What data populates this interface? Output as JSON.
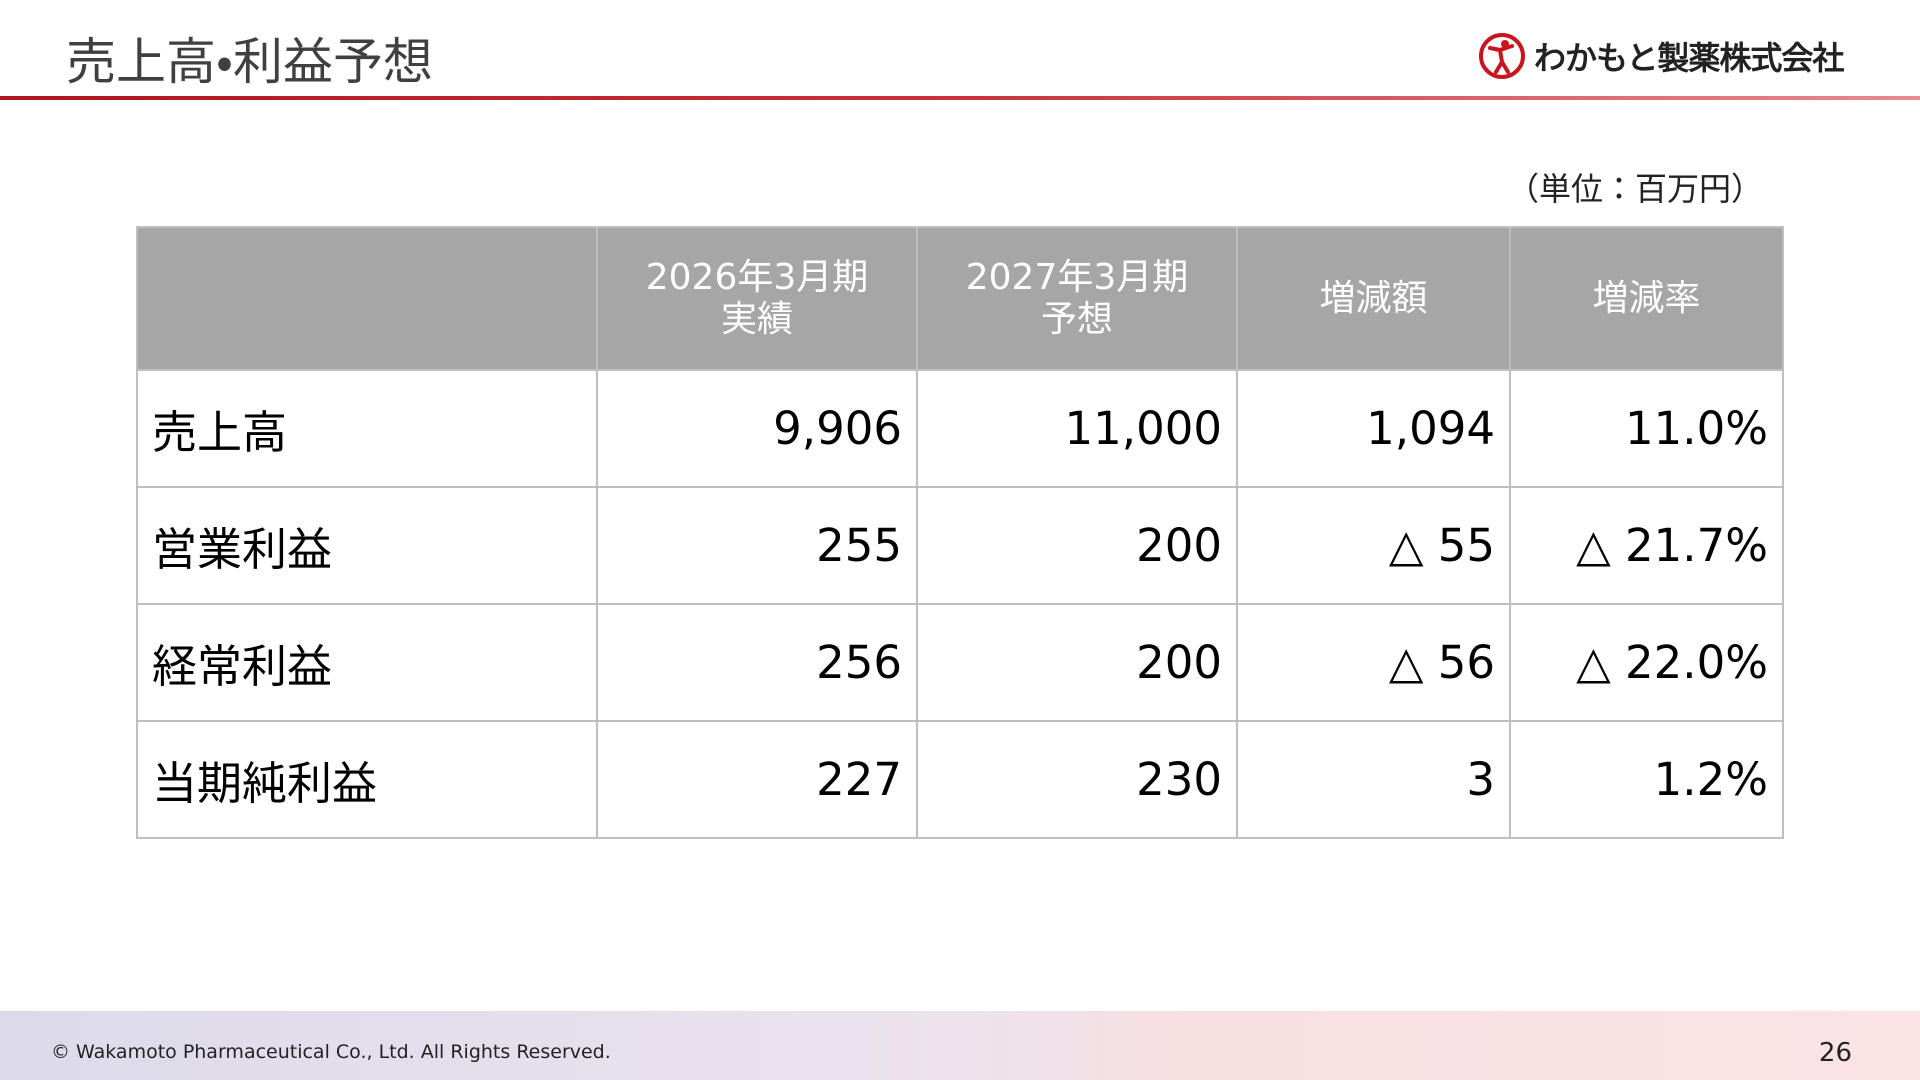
{
  "header": {
    "title": "売上高・利益予想",
    "company": "わかもと製薬株式会社"
  },
  "unit_note": "（単位：百万円）",
  "table": {
    "columns": [
      "",
      "2026年3月期\n実績",
      "2027年3月期\n予想",
      "増減額",
      "増減率"
    ],
    "rows": [
      [
        "売上高",
        "9,906",
        "11,000",
        "1,094",
        "11.0%"
      ],
      [
        "営業利益",
        "255",
        "200",
        "△ 55",
        "△ 21.7%"
      ],
      [
        "経常利益",
        "256",
        "200",
        "△ 56",
        "△ 22.0%"
      ],
      [
        "当期純利益",
        "227",
        "230",
        "3",
        "1.2%"
      ]
    ]
  },
  "footer": {
    "copyright": "© Wakamoto Pharmaceutical Co., Ltd. All Rights Reserved.",
    "page": "26"
  }
}
